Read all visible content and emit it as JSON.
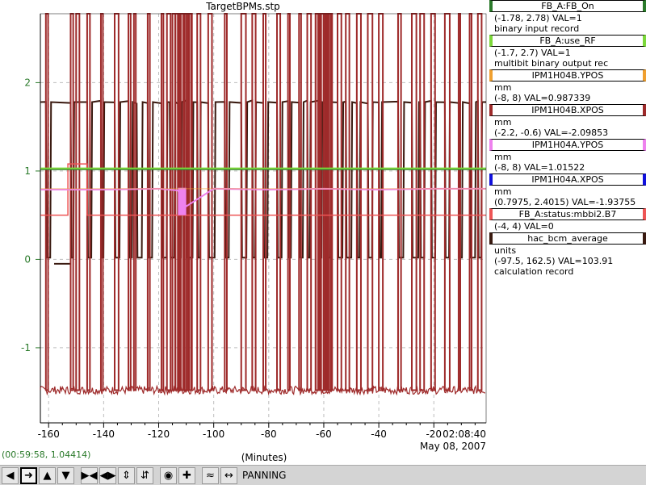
{
  "window": {
    "title": "TargetBPMs.stp"
  },
  "legend": [
    {
      "name": "FB_A:FB_On",
      "color": "#2a7a2a",
      "lines": [
        "(-1.78, 2.78)  VAL=1",
        "binary input record"
      ]
    },
    {
      "name": "FB_A:use_RF",
      "color": "#7cd83a",
      "lines": [
        "(-1.7, 2.7) VAL=1",
        "multibit binary output rec"
      ]
    },
    {
      "name": "IPM1H04B.YPOS",
      "color": "#f0a030",
      "lines": [
        "mm",
        "(-8, 8) VAL=0.987339"
      ]
    },
    {
      "name": "IPM1H04B.XPOS",
      "color": "#9e2a2a",
      "lines": [
        "mm",
        "(-2.2, -0.6) VAL=-2.09853"
      ]
    },
    {
      "name": "IPM1H04A.YPOS",
      "color": "#ee82ee",
      "lines": [
        "mm",
        "(-8, 8) VAL=1.01522"
      ]
    },
    {
      "name": "IPM1H04A.XPOS",
      "color": "#1010dd",
      "lines": [
        "mm",
        "(0.7975, 2.4015) VAL=-1.93755"
      ]
    },
    {
      "name": "FB_A:status:mbbi2.B7",
      "color": "#ee5555",
      "lines": [
        "(-4, 4) VAL=0"
      ]
    },
    {
      "name": "hac_bcm_average",
      "color": "#3a1a10",
      "lines": [
        "units",
        "(-97.5, 162.5) VAL=103.91",
        "calculation record"
      ]
    }
  ],
  "status_bar": {
    "cursor_readout": "(00:59:58, 1.04414)",
    "mode": "PANNING"
  },
  "axis": {
    "x_title": "(Minutes)",
    "end_time": "02:08:40",
    "date": "May 08, 2007"
  },
  "toolbar": {
    "icons": [
      "arrow-left-icon",
      "arrow-right-icon",
      "arrow-up-icon",
      "arrow-down-icon",
      "zoom-in-x-icon",
      "zoom-out-x-icon",
      "zoom-in-y-icon",
      "zoom-out-y-icon",
      "record-icon",
      "crosshair-icon",
      "autoscale-icon",
      "pan-icon"
    ]
  },
  "chart_data": {
    "type": "line",
    "title": "TargetBPMs.stp",
    "xlabel": "(Minutes)",
    "ylabel": "",
    "xlim": [
      -163,
      -1
    ],
    "ylim": [
      -1.85,
      2.78
    ],
    "x_ticks": [
      -160,
      -140,
      -120,
      -100,
      -80,
      -60,
      -40,
      -20
    ],
    "x_tick_labels": [
      "-160",
      "-140",
      "-120",
      "-100",
      "-80",
      "-60",
      "-40",
      "-20"
    ],
    "y_ticks": [
      2,
      1,
      0,
      -1
    ],
    "y_tick_labels": [
      "2",
      "1",
      "0",
      "-1"
    ],
    "grid": true,
    "tick_color": "#2a7a2a",
    "series": [
      {
        "name": "FB_A:FB_On",
        "color": "#2a7a2a",
        "x": [
          -163,
          -1
        ],
        "y": [
          1.02,
          1.02
        ]
      },
      {
        "name": "FB_A:use_RF",
        "color": "#7cd83a",
        "x": [
          -163,
          -1
        ],
        "y": [
          1.03,
          1.03
        ]
      },
      {
        "name": "IPM1H04B.YPOS",
        "color": "#f0a030",
        "x": [
          -163,
          -1
        ],
        "y": [
          0.8,
          0.8
        ]
      },
      {
        "name": "IPM1H04A.YPOS",
        "color": "#ee82ee",
        "x": [
          -163,
          -140,
          -120,
          -113,
          -110,
          -100,
          -80,
          -60,
          -40,
          -20,
          -1
        ],
        "y": [
          0.79,
          0.79,
          0.8,
          0.78,
          0.6,
          0.8,
          0.79,
          0.8,
          0.79,
          0.8,
          0.8
        ]
      },
      {
        "name": "FB_A:status:mbbi2.B7",
        "color": "#ee5555",
        "x": [
          -163,
          -153,
          -153,
          -146,
          -146,
          -1
        ],
        "y": [
          0.5,
          0.5,
          1.08,
          1.08,
          0.5,
          0.5
        ]
      },
      {
        "name": "hac_bcm_average",
        "color": "#3a1a10",
        "x": [
          -163,
          -1
        ],
        "y": [
          1.78,
          1.78
        ]
      },
      {
        "name": "IPM1H04B.XPOS",
        "color": "#9e2a2a",
        "x": [
          -163,
          -1
        ],
        "y": [
          -1.48,
          -1.48
        ]
      }
    ]
  }
}
